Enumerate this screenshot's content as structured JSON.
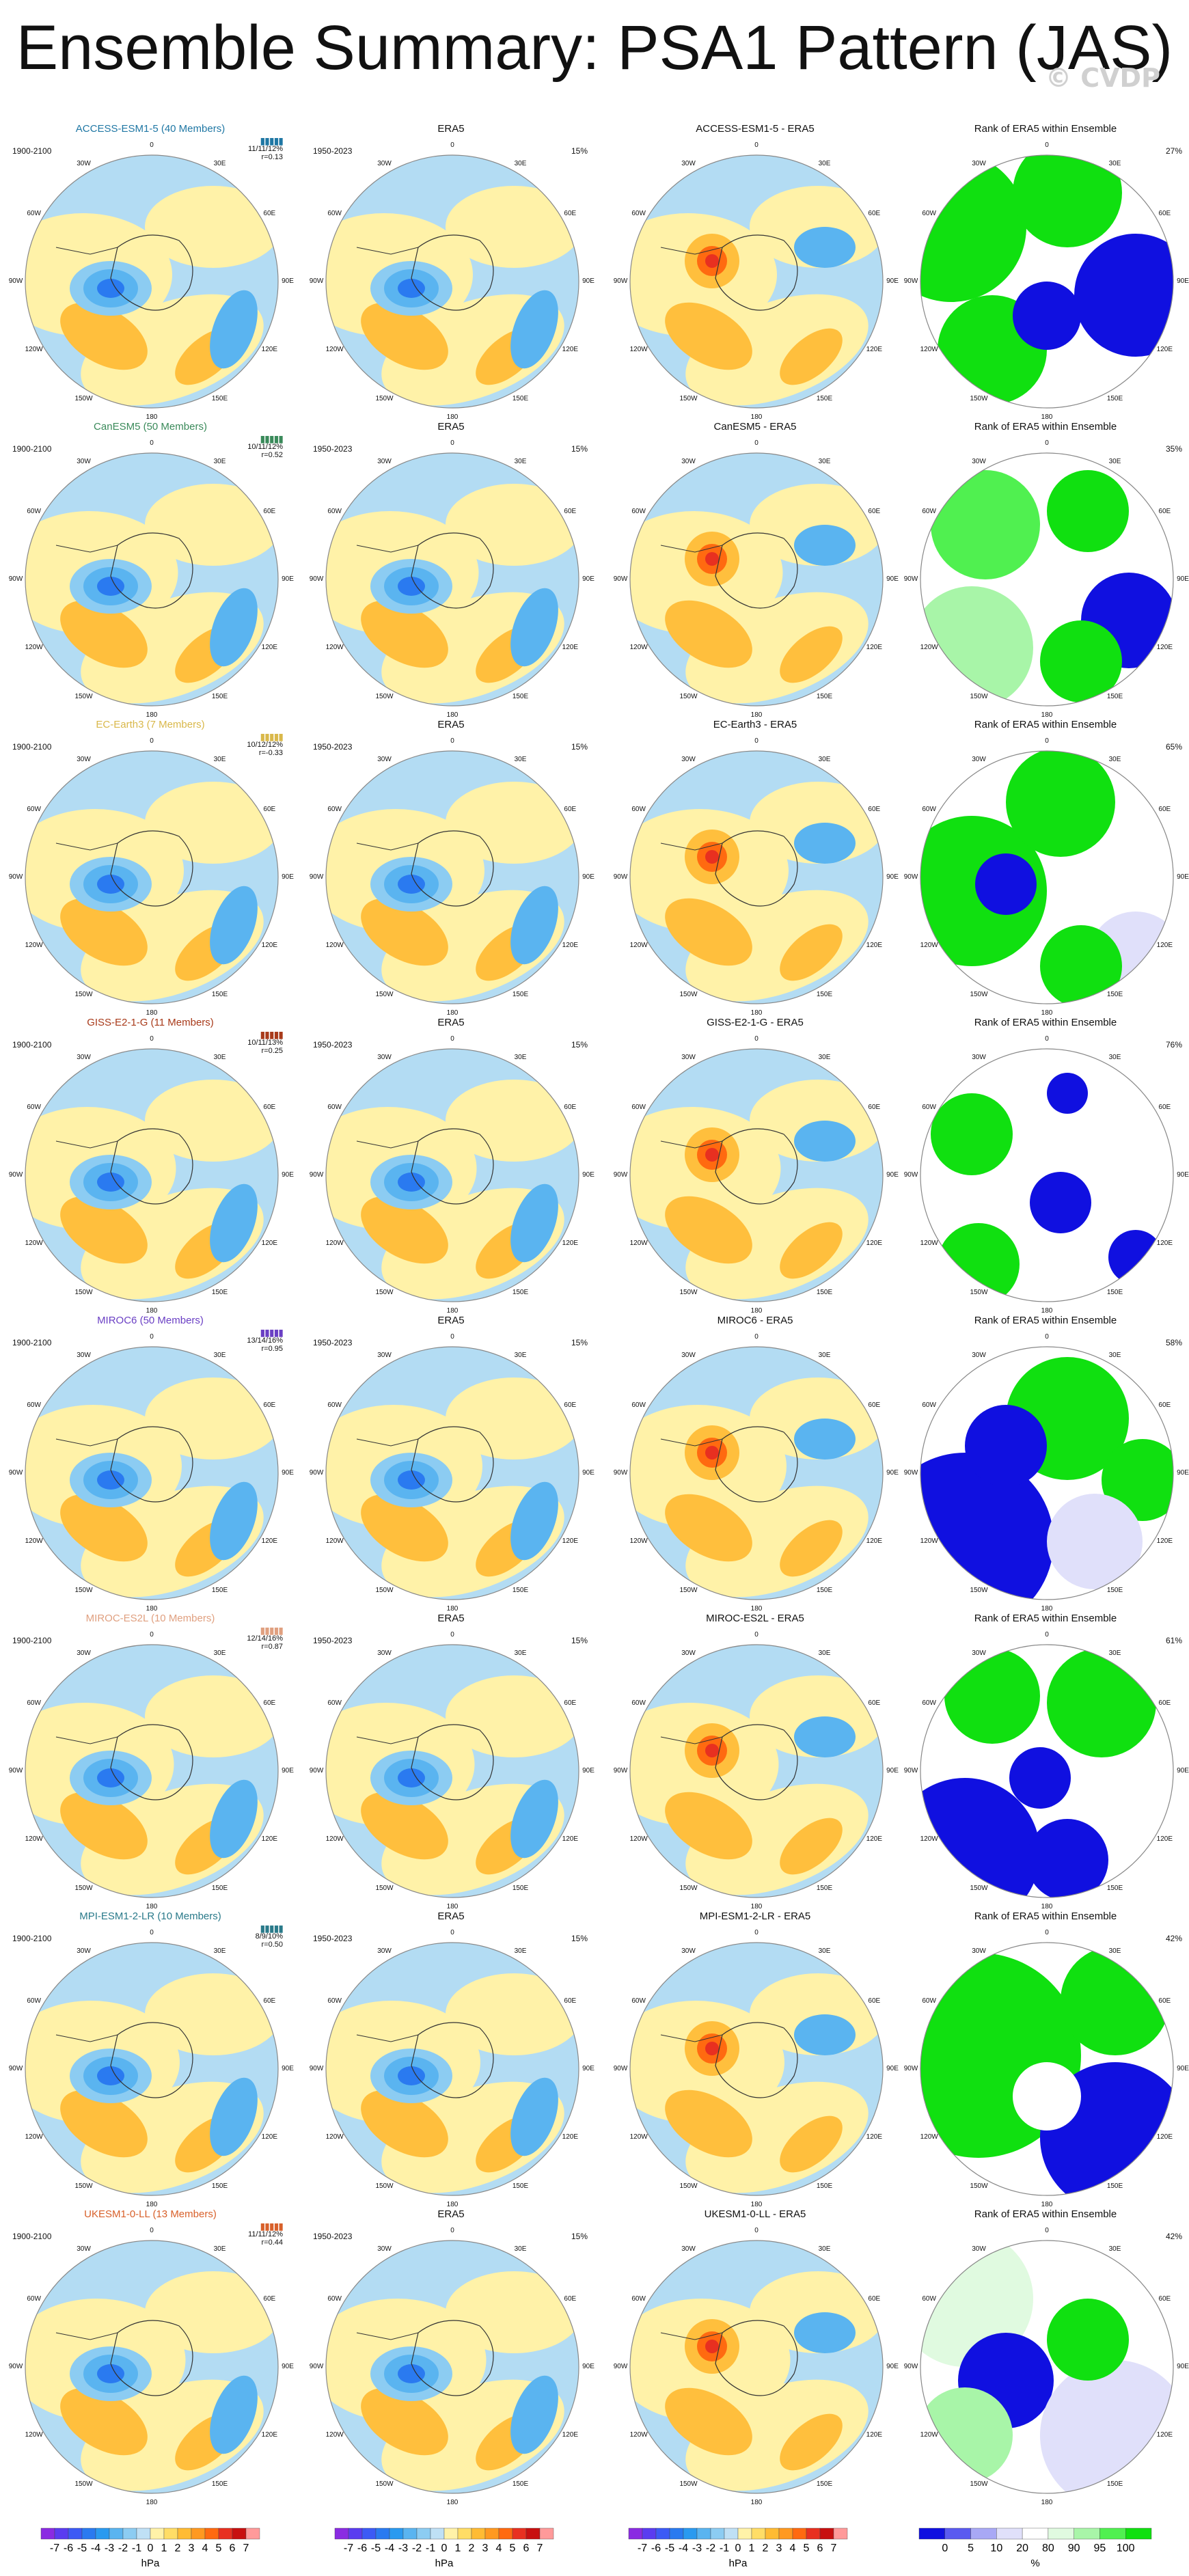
{
  "title": "Ensemble Summary: PSA1 Pattern (JAS)",
  "watermark": "© CVDP",
  "columns": {
    "era5_title": "ERA5",
    "rank_title": "Rank of ERA5 within Ensemble",
    "model_period": "1900-2100",
    "era5_period": "1950-2023",
    "era5_pct": "15%"
  },
  "lon_labels": [
    "0",
    "30E",
    "60E",
    "90E",
    "120E",
    "150E",
    "180",
    "150W",
    "120W",
    "90W",
    "60W",
    "30W"
  ],
  "rows": [
    {
      "model": "ACCESS-ESM1-5 (40 Members)",
      "diff": "ACCESS-ESM1-5 - ERA5",
      "stats": [
        "11/11/12%",
        "r=0.13"
      ],
      "rank_pct": "27%",
      "color": "#1f77a4"
    },
    {
      "model": "CanESM5 (50 Members)",
      "diff": "CanESM5 - ERA5",
      "stats": [
        "10/11/12%",
        "r=0.52"
      ],
      "rank_pct": "35%",
      "color": "#3a8a5a"
    },
    {
      "model": "EC-Earth3 (7 Members)",
      "diff": "EC-Earth3 - ERA5",
      "stats": [
        "10/12/12%",
        "r=-0.33"
      ],
      "rank_pct": "65%",
      "color": "#d9b84a"
    },
    {
      "model": "GISS-E2-1-G (11 Members)",
      "diff": "GISS-E2-1-G - ERA5",
      "stats": [
        "10/11/13%",
        "r=0.25"
      ],
      "rank_pct": "76%",
      "color": "#a83a1a"
    },
    {
      "model": "MIROC6 (50 Members)",
      "diff": "MIROC6 - ERA5",
      "stats": [
        "13/14/16%",
        "r=0.95"
      ],
      "rank_pct": "58%",
      "color": "#6a3fc4"
    },
    {
      "model": "MIROC-ES2L (10 Members)",
      "diff": "MIROC-ES2L - ERA5",
      "stats": [
        "12/14/16%",
        "r=0.87"
      ],
      "rank_pct": "61%",
      "color": "#e0a080"
    },
    {
      "model": "MPI-ESM1-2-LR (10 Members)",
      "diff": "MPI-ESM1-2-LR - ERA5",
      "stats": [
        "8/9/10%",
        "r=0.50"
      ],
      "rank_pct": "42%",
      "color": "#2a7a8a"
    },
    {
      "model": "UKESM1-0-LL (13 Members)",
      "diff": "UKESM1-0-LL - ERA5",
      "stats": [
        "11/11/12%",
        "r=0.44"
      ],
      "rank_pct": "42%",
      "color": "#d8602a"
    }
  ],
  "colorbar": {
    "ticks": [
      "-7",
      "-6",
      "-5",
      "-4",
      "-3",
      "-2",
      "-1",
      "0",
      "1",
      "2",
      "3",
      "4",
      "5",
      "6",
      "7"
    ],
    "unit": "hPa",
    "colors": [
      "#8a2be2",
      "#5a3cf0",
      "#3c5af5",
      "#2a7af0",
      "#2a9af0",
      "#5ab4f0",
      "#8cccf2",
      "#bfe0f5",
      "#fff2a8",
      "#ffdd66",
      "#ffbb33",
      "#ff9920",
      "#ff6a10",
      "#e83020",
      "#c81010",
      "#ff9a9a"
    ]
  },
  "rank_colorbar": {
    "ticks": [
      "0",
      "5",
      "10",
      "20",
      "80",
      "90",
      "95",
      "100"
    ],
    "unit": "%",
    "colors": [
      "#1010e0",
      "#5a5af0",
      "#a8a8f5",
      "#e0e0fa",
      "#ffffff",
      "#e0fae0",
      "#a8f5a8",
      "#50f050",
      "#10e010"
    ]
  },
  "palette": {
    "ocean_blue": "#b3dcf3",
    "yellow": "#fff2a8",
    "orange": "#ffbf3d",
    "blue_mid": "#5ab4f0",
    "blue_dark": "#2a7af0",
    "red": "#e83020",
    "rank_blue": "#1010e0",
    "rank_green": "#10e010"
  }
}
